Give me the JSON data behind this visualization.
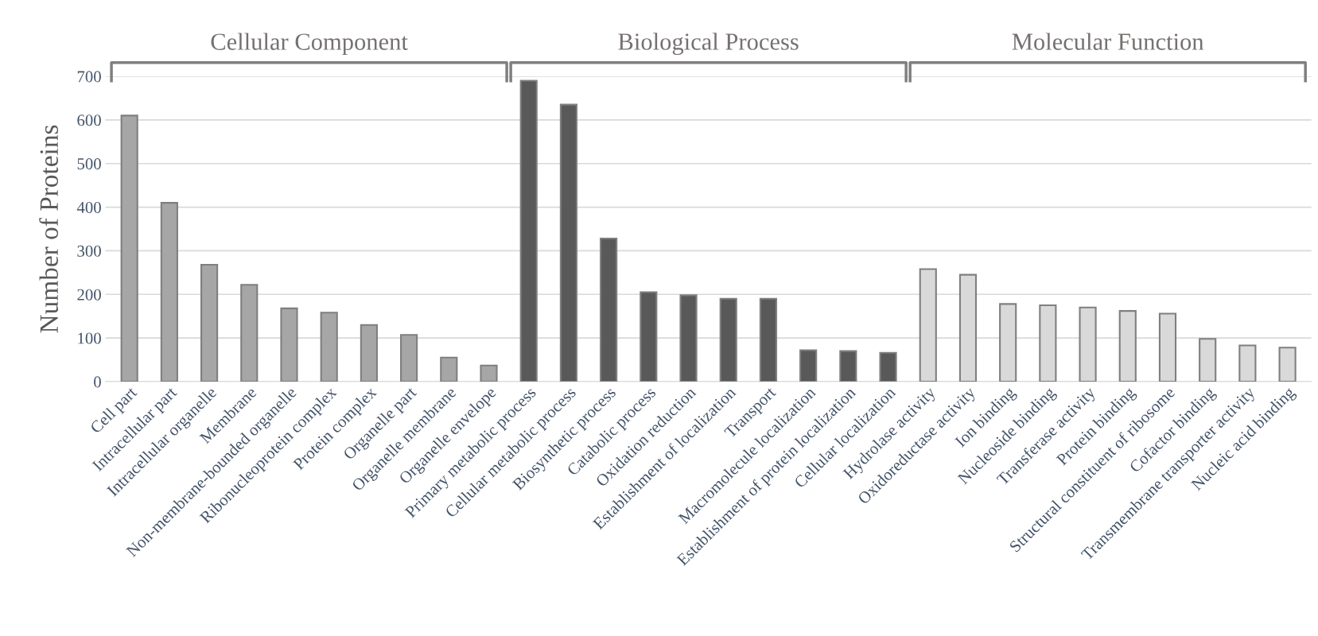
{
  "chart_data": {
    "type": "bar",
    "ylabel": "Number of Proteins",
    "categories": [
      "Cell part",
      "Intracellular part",
      "Intracellular organelle",
      "Membrane",
      "Non-membrane-bounded organelle",
      "Ribonucleoprotein complex",
      "Protein complex",
      "Organelle part",
      "Organelle membrane",
      "Organelle envelope",
      "Primary metabolic process",
      "Cellular metabolic process",
      "Biosynthetic process",
      "Catabolic process",
      "Oxidation reduction",
      "Establishment of localization",
      "Transport",
      "Macromolecule localization",
      "Establishment of protein localization",
      "Cellular localization",
      "Hydrolase activity",
      "Oxidoreductase activity",
      "Ion binding",
      "Nucleoside binding",
      "Transferase activity",
      "Protein binding",
      "Structural constituent of ribosome",
      "Cofactor binding",
      "Transmembrane transporter activity",
      "Nucleic acid binding"
    ],
    "series": [
      {
        "color": "#a6a6a6",
        "values": [
          610,
          410,
          268,
          222,
          168,
          158,
          130,
          107,
          55,
          37,
          null,
          null,
          null,
          null,
          null,
          null,
          null,
          null,
          null,
          null,
          null,
          null,
          null,
          null,
          null,
          null,
          null,
          null,
          null,
          null
        ]
      },
      {
        "color": "#595959",
        "values": [
          null,
          null,
          null,
          null,
          null,
          null,
          null,
          null,
          null,
          null,
          690,
          635,
          328,
          205,
          198,
          190,
          190,
          72,
          70,
          66,
          null,
          null,
          null,
          null,
          null,
          null,
          null,
          null,
          null,
          null
        ]
      },
      {
        "color": "#d9d9d9",
        "values": [
          null,
          null,
          null,
          null,
          null,
          null,
          null,
          null,
          null,
          null,
          null,
          null,
          null,
          null,
          null,
          null,
          null,
          null,
          null,
          null,
          258,
          245,
          178,
          175,
          170,
          162,
          156,
          98,
          83,
          78
        ]
      }
    ],
    "annotations": [
      "Cellular Component",
      "Biological Process",
      "Molecular Function"
    ],
    "ylim": [
      0,
      700
    ],
    "yticks": [
      0,
      100,
      200,
      300,
      400,
      500,
      600,
      700
    ],
    "grid": "y"
  }
}
